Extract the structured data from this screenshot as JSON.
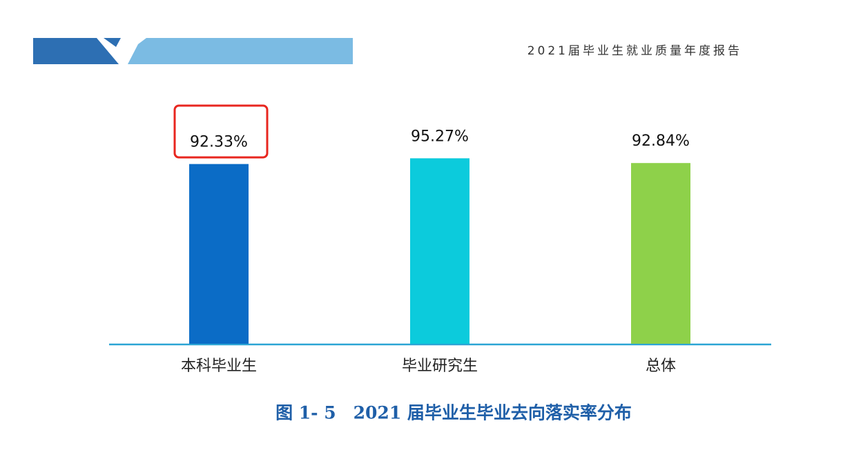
{
  "header": {
    "title": "2021届毕业生就业质量年度报告"
  },
  "chart_data": {
    "type": "bar",
    "title": "图 1- 5　2021 届毕业生毕业去向落实率分布",
    "categories": [
      "本科毕业生",
      "毕业研究生",
      "总体"
    ],
    "values": [
      92.33,
      95.27,
      92.84
    ],
    "value_labels": [
      "92.33%",
      "95.27%",
      "92.84%"
    ],
    "colors": [
      "#0b6cc6",
      "#0ccbdc",
      "#8ed14a"
    ],
    "ylim": [
      0,
      100
    ]
  }
}
